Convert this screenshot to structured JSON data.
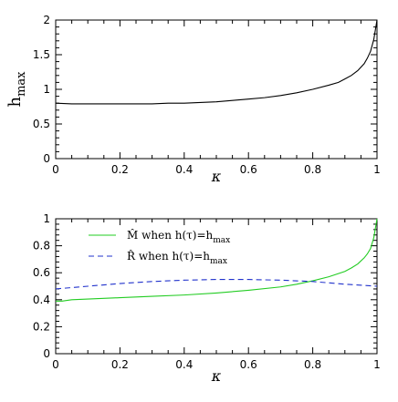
{
  "chart_data": [
    {
      "type": "line",
      "xlabel": "κ",
      "ylabel": "h",
      "ylabel_sub": "max",
      "xlim": [
        0,
        1
      ],
      "ylim": [
        0,
        2
      ],
      "x_ticks": [
        "0",
        "0.2",
        "0.4",
        "0.6",
        "0.8",
        "1"
      ],
      "y_ticks": [
        "0",
        "0.5",
        "1",
        "1.5",
        "2"
      ],
      "legend": "none",
      "grid": false,
      "series": [
        {
          "color": "#000000",
          "dash": "solid",
          "x": [
            0,
            0.05,
            0.1,
            0.15,
            0.2,
            0.25,
            0.3,
            0.35,
            0.4,
            0.45,
            0.5,
            0.55,
            0.6,
            0.65,
            0.7,
            0.75,
            0.8,
            0.85,
            0.88,
            0.9,
            0.92,
            0.94,
            0.96,
            0.97,
            0.98,
            0.99,
            1.0
          ],
          "y": [
            0.8,
            0.79,
            0.79,
            0.79,
            0.79,
            0.79,
            0.79,
            0.8,
            0.8,
            0.81,
            0.82,
            0.84,
            0.86,
            0.88,
            0.91,
            0.95,
            1.0,
            1.06,
            1.1,
            1.15,
            1.2,
            1.27,
            1.37,
            1.45,
            1.55,
            1.72,
            2.0
          ]
        }
      ]
    },
    {
      "type": "line",
      "xlabel": "κ",
      "ylabel": "",
      "xlim": [
        0,
        1
      ],
      "ylim": [
        0,
        1
      ],
      "x_ticks": [
        "0",
        "0.2",
        "0.4",
        "0.6",
        "0.8",
        "1"
      ],
      "y_ticks": [
        "0",
        "0.2",
        "0.4",
        "0.6",
        "0.8",
        "1"
      ],
      "legend": "top-left",
      "grid": false,
      "series": [
        {
          "name": "M̂ when h(τ)=h",
          "name_sub": "max",
          "color": "#22cc22",
          "dash": "solid",
          "x": [
            0,
            0.02,
            0.05,
            0.1,
            0.2,
            0.3,
            0.4,
            0.5,
            0.6,
            0.7,
            0.75,
            0.8,
            0.85,
            0.9,
            0.92,
            0.94,
            0.96,
            0.97,
            0.98,
            0.99,
            1.0
          ],
          "y": [
            0.39,
            0.39,
            0.4,
            0.405,
            0.415,
            0.425,
            0.435,
            0.45,
            0.47,
            0.495,
            0.515,
            0.54,
            0.57,
            0.61,
            0.635,
            0.665,
            0.71,
            0.74,
            0.78,
            0.86,
            1.0
          ]
        },
        {
          "name": "R̂ when h(τ)=h",
          "name_sub": "max",
          "color": "#2233cc",
          "dash": "dashed",
          "x": [
            0,
            0.1,
            0.2,
            0.3,
            0.4,
            0.5,
            0.6,
            0.7,
            0.8,
            0.9,
            1.0
          ],
          "y": [
            0.48,
            0.5,
            0.52,
            0.535,
            0.545,
            0.55,
            0.55,
            0.545,
            0.535,
            0.515,
            0.5
          ]
        }
      ]
    }
  ]
}
